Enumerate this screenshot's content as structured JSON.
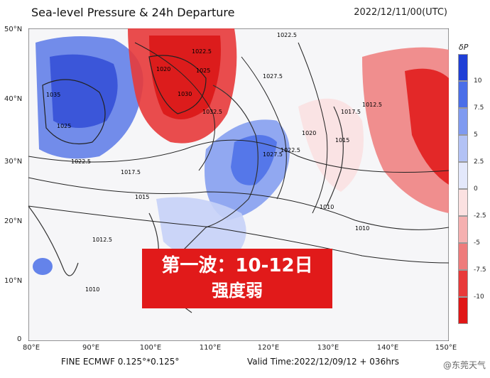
{
  "header": {
    "title": "Sea-level Pressure & 24h Departure",
    "timestamp": "2022/12/11/00(UTC)"
  },
  "axes": {
    "lat_ticks": [
      "50°N",
      "40°N",
      "30°N",
      "20°N",
      "10°N",
      "0"
    ],
    "lon_ticks": [
      "80°E",
      "90°E",
      "100°E",
      "110°E",
      "120°E",
      "130°E",
      "140°E",
      "150°E"
    ]
  },
  "footer": {
    "model": "FINE ECMWF 0.125°*0.125°",
    "valid_time": "Valid Time:2022/12/09/12 + 036hrs",
    "watermark": "@东莞天气"
  },
  "legend": {
    "title": "δP",
    "labels": [
      "10",
      "7.5",
      "5",
      "2.5",
      "0",
      "-2.5",
      "-5",
      "-7.5",
      "-10"
    ],
    "colors": [
      "#1f3fd6",
      "#4a6ee8",
      "#7f9af0",
      "#b3c2f5",
      "#e3e8fb",
      "#fbe1e1",
      "#f5b0b0",
      "#ee7b7b",
      "#e83a3a",
      "#e01616"
    ]
  },
  "contour_labels": [
    "1035",
    "1025",
    "1020",
    "1022.5",
    "1017.5",
    "1015",
    "1030",
    "1032.5",
    "1027.5",
    "1012.5",
    "1010"
  ],
  "banner": {
    "line1": "第一波：10-12日",
    "line2": "强度弱"
  }
}
